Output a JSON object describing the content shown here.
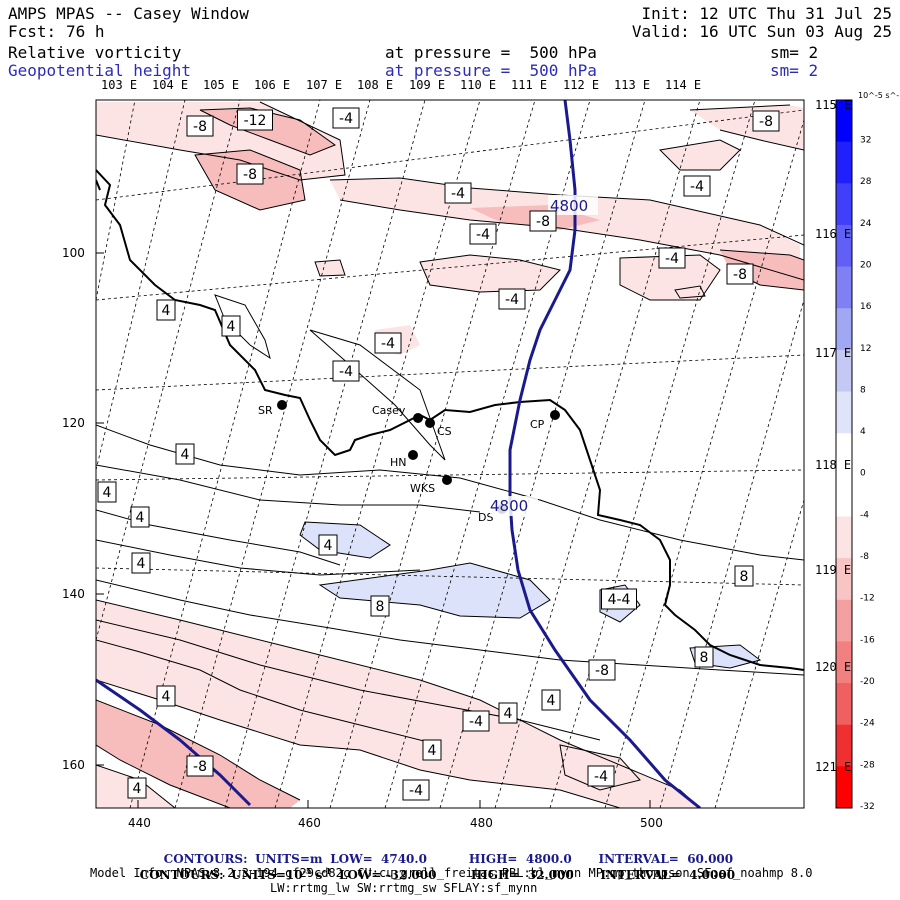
{
  "header": {
    "title": "AMPS MPAS -- Casey Window",
    "fcst_label": "Fcst:",
    "fcst_value": "76 h",
    "init": "Init: 12 UTC Thu 31 Jul 25",
    "valid": "Valid: 16 UTC Sun 03 Aug 25",
    "field1_name": "Relative vorticity",
    "field1_level": "at pressure =  500 hPa",
    "field1_sm": "sm= 2",
    "field2_name": "Geopotential height",
    "field2_level": "at pressure =  500 hPa",
    "field2_sm": "sm= 2"
  },
  "map": {
    "top_lon_labels": [
      "103 E",
      "104 E",
      "105 E",
      "106 E",
      "107 E",
      "108 E",
      "109 E",
      "110 E",
      "111 E",
      "112 E",
      "113 E",
      "114 E"
    ],
    "right_lon_labels": [
      "115 E",
      "116 E",
      "117 E",
      "118 E",
      "119 E",
      "120 E",
      "121 E"
    ],
    "left_ticks": [
      "100",
      "120",
      "140",
      "160"
    ],
    "bottom_ticks": [
      "440",
      "460",
      "480",
      "500"
    ],
    "stations": [
      {
        "id": "SR",
        "label": "SR"
      },
      {
        "id": "Casey",
        "label": "Casey"
      },
      {
        "id": "CS",
        "label": "CS"
      },
      {
        "id": "HN",
        "label": "HN"
      },
      {
        "id": "WKS",
        "label": "WKS"
      },
      {
        "id": "DS",
        "label": "DS"
      },
      {
        "id": "CP",
        "label": "CP"
      }
    ],
    "height_labels": [
      "4800",
      "4800"
    ],
    "vort_labels": [
      "-8",
      "-12",
      "-4",
      "-8",
      "-8",
      "-4",
      "-4",
      "-8",
      "-4",
      "-4",
      "-4",
      "-8",
      "-4",
      "4",
      "4",
      "-4",
      "4",
      "4",
      "4",
      "4",
      "4",
      "8",
      "8",
      "4-4",
      "8",
      "-8",
      "4",
      "4",
      "-4",
      "4",
      "4",
      "-8",
      "4",
      "-4",
      "-4"
    ],
    "colors": {
      "neg_light": "#fde4e4",
      "neg_mid": "#f7bcbc",
      "pos_light": "#dde2fb",
      "height_line": "#1a1a8c",
      "coast": "#000000"
    }
  },
  "colorbar": {
    "unit": "10^-5 s^-1",
    "ticks": [
      "32",
      "28",
      "24",
      "20",
      "16",
      "12",
      "8",
      "4",
      "0",
      "-4",
      "-8",
      "-12",
      "-16",
      "-20",
      "-24",
      "-28",
      "-32"
    ],
    "colors": [
      "#0000ff",
      "#2020ff",
      "#4040fb",
      "#6060f7",
      "#8080f5",
      "#a0a8f3",
      "#c4c8f5",
      "#e0e4fa",
      "#ffffff",
      "#ffffff",
      "#fde4e4",
      "#f9c4c4",
      "#f5a0a0",
      "#f28080",
      "#f06060",
      "#f03030",
      "#ff0000"
    ]
  },
  "footer": {
    "line1_label": "CONTOURS:",
    "line1_units": "UNITS=m",
    "line1_low": "LOW=  4740.0",
    "line1_high": "HIGH=  4800.0",
    "line1_interval": "INTERVAL=  60.000",
    "line2_label": "CONTOURS:",
    "line2_units": "UNITS=10",
    "line2_units_exp": "-5",
    "line2_units_tail": "s",
    "line2_units_tail_exp": "-1",
    "line2_low": "LOW= -32.000",
    "line2_high": "HIGH=  32.000",
    "line2_interval": "INTERVAL=  4.0000",
    "model_info": "Model Info: MPASv8.2.3-194-gf29cd82c CU:cu_grell_freitas PBL:bl_mynn MP:mp_thompson SF:sf_noahmp 8.0",
    "model_info2": "LW:rrtmg_lw SW:rrtmg_sw SFLAY:sf_mynn"
  }
}
